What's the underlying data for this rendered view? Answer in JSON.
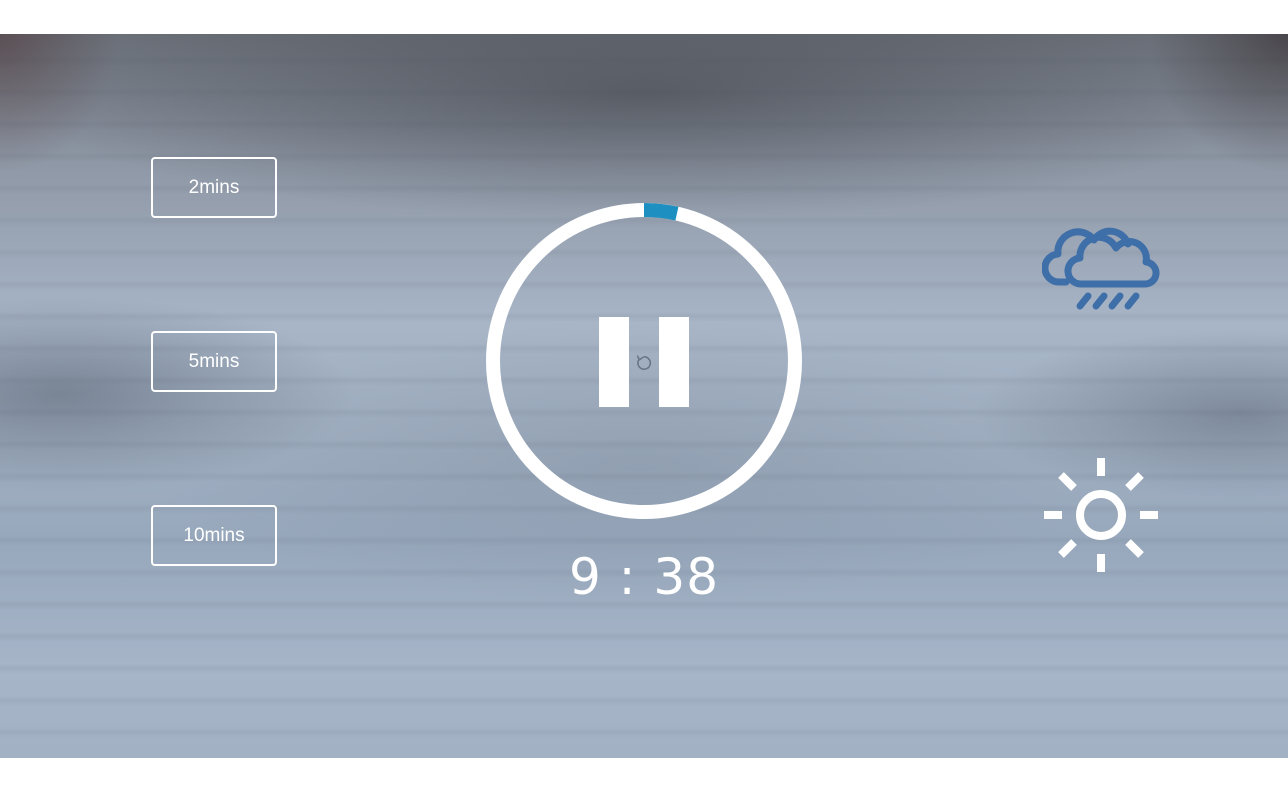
{
  "durations": {
    "two": "2mins",
    "five": "5mins",
    "ten": "10mins"
  },
  "timer": {
    "remaining": "9 : 38",
    "progress_fraction": 0.035,
    "ring_color": "#ffffff",
    "progress_color": "#1d8fc0",
    "state": "playing"
  },
  "icons": {
    "pause": "pause-icon",
    "restart": "restart-icon",
    "rain": "rain-cloud-icon",
    "sun": "sun-icon",
    "rain_color": "#3f6fa8",
    "sun_color": "#ffffff"
  }
}
